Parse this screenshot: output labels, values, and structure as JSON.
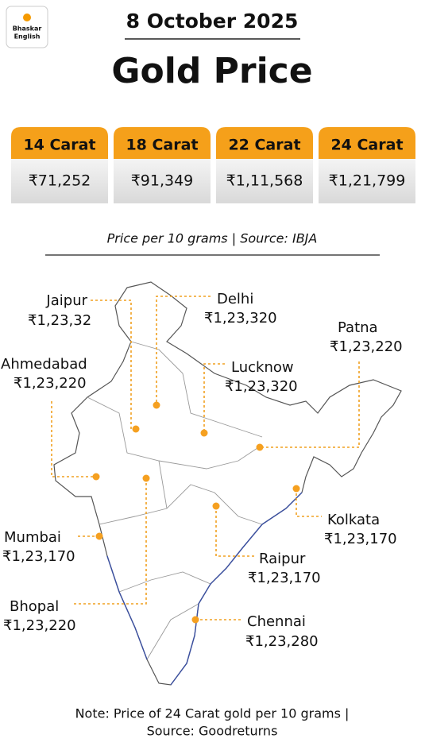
{
  "logo": {
    "lines": [
      "Bhaskar",
      "English"
    ]
  },
  "header": {
    "date": "8 October 2025",
    "title": "Gold Price"
  },
  "cards": [
    {
      "carat": "14 Carat",
      "price": "₹71,252"
    },
    {
      "carat": "18 Carat",
      "price": "₹91,349"
    },
    {
      "carat": "22 Carat",
      "price": "₹1,11,568"
    },
    {
      "carat": "24 Carat",
      "price": "₹1,21,799"
    }
  ],
  "cards_note": "Price per 10 grams | Source: IBJA",
  "cities": [
    {
      "name": "Jaipur",
      "price": "₹1,23,32"
    },
    {
      "name": "Delhi",
      "price": "₹1,23,320"
    },
    {
      "name": "Patna",
      "price": "₹1,23,220"
    },
    {
      "name": "Ahmedabad",
      "price": "₹1,23,220"
    },
    {
      "name": "Lucknow",
      "price": "₹1,23,320"
    },
    {
      "name": "Kolkata",
      "price": "₹1,23,170"
    },
    {
      "name": "Mumbai",
      "price": "₹1,23,170"
    },
    {
      "name": "Raipur",
      "price": "₹1,23,170"
    },
    {
      "name": "Bhopal",
      "price": "₹1,23,220"
    },
    {
      "name": "Chennai",
      "price": "₹1,23,280"
    }
  ],
  "footnote": {
    "lines": [
      "Note: Price of 24 Carat gold per 10 grams |",
      "Source: Goodreturns"
    ]
  }
}
